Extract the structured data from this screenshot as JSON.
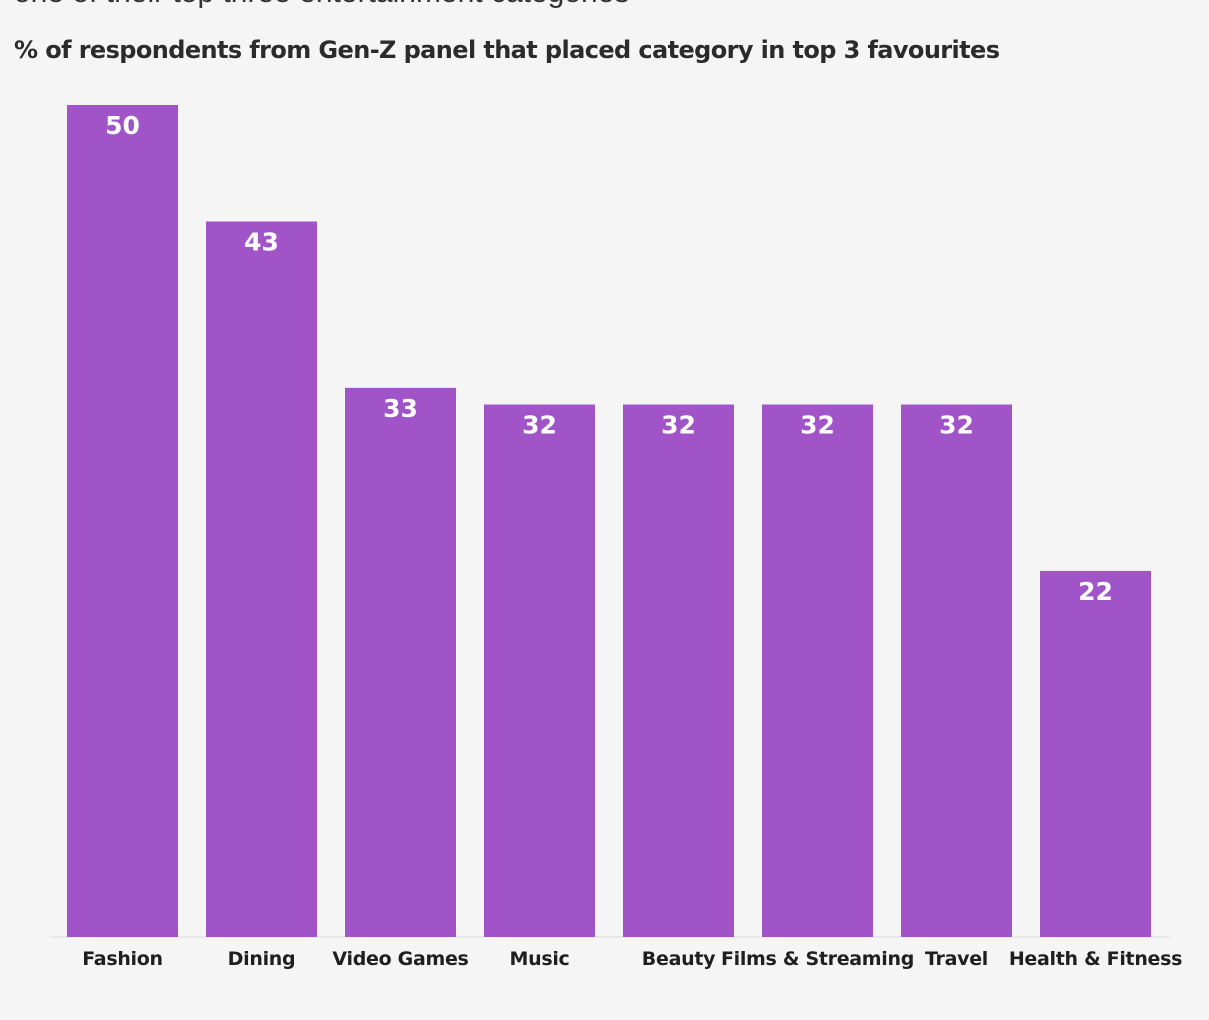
{
  "subtitle_cut": "one of their top three entertainment categories",
  "bar_color": "#a054c8",
  "chart_data": {
    "type": "bar",
    "title": "% of respondents from Gen-Z panel that placed category in top 3 favourites",
    "categories": [
      "Fashion",
      "Dining",
      "Video Games",
      "Music",
      "Beauty",
      "Films & Streaming",
      "Travel",
      "Health & Fitness"
    ],
    "values": [
      50,
      43,
      33,
      32,
      32,
      32,
      32,
      22
    ],
    "xlabel": "",
    "ylabel": "",
    "ylim": [
      0,
      50
    ],
    "grid": false,
    "legend": "none"
  }
}
